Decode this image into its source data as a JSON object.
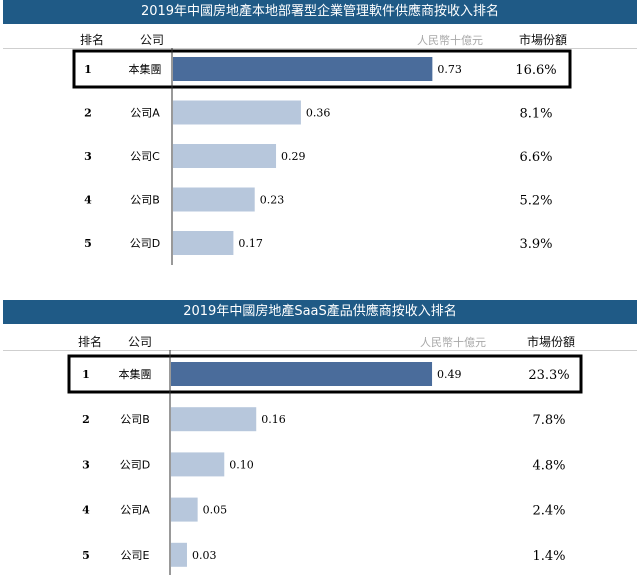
{
  "chart_data": [
    {
      "type": "bar",
      "title": "2019年中國房地產本地部署型企業管理軟件供應商按收入排名",
      "header": {
        "rank": "排名",
        "company": "公司",
        "unit": "人民幣十億元",
        "share": "市場份額"
      },
      "xlim": [
        0,
        0.85
      ],
      "rows": [
        {
          "rank": "1",
          "company": "本集團",
          "value": 0.73,
          "value_label": "0.73",
          "share": "16.6%",
          "highlight": true
        },
        {
          "rank": "2",
          "company": "公司A",
          "value": 0.36,
          "value_label": "0.36",
          "share": "8.1%",
          "highlight": false
        },
        {
          "rank": "3",
          "company": "公司C",
          "value": 0.29,
          "value_label": "0.29",
          "share": "6.6%",
          "highlight": false
        },
        {
          "rank": "4",
          "company": "公司B",
          "value": 0.23,
          "value_label": "0.23",
          "share": "5.2%",
          "highlight": false
        },
        {
          "rank": "5",
          "company": "公司D",
          "value": 0.17,
          "value_label": "0.17",
          "share": "3.9%",
          "highlight": false
        }
      ]
    },
    {
      "type": "bar",
      "title": "2019年中國房地產SaaS產品供應商按收入排名",
      "header": {
        "rank": "排名",
        "company": "公司",
        "unit": "人民幣十億元",
        "share": "市場份額"
      },
      "xlim": [
        0,
        0.58
      ],
      "rows": [
        {
          "rank": "1",
          "company": "本集團",
          "value": 0.49,
          "value_label": "0.49",
          "share": "23.3%",
          "highlight": true
        },
        {
          "rank": "2",
          "company": "公司B",
          "value": 0.16,
          "value_label": "0.16",
          "share": "7.8%",
          "highlight": false
        },
        {
          "rank": "3",
          "company": "公司D",
          "value": 0.1,
          "value_label": "0.10",
          "share": "4.8%",
          "highlight": false
        },
        {
          "rank": "4",
          "company": "公司A",
          "value": 0.05,
          "value_label": "0.05",
          "share": "2.4%",
          "highlight": false
        },
        {
          "rank": "5",
          "company": "公司E",
          "value": 0.03,
          "value_label": "0.03",
          "share": "1.4%",
          "highlight": false
        }
      ]
    }
  ],
  "colors": {
    "title_bg": "#1f5a86",
    "bar_highlight": "#4a6c9b",
    "bar_normal": "#b7c7dc",
    "highlight_box": "#000000"
  }
}
